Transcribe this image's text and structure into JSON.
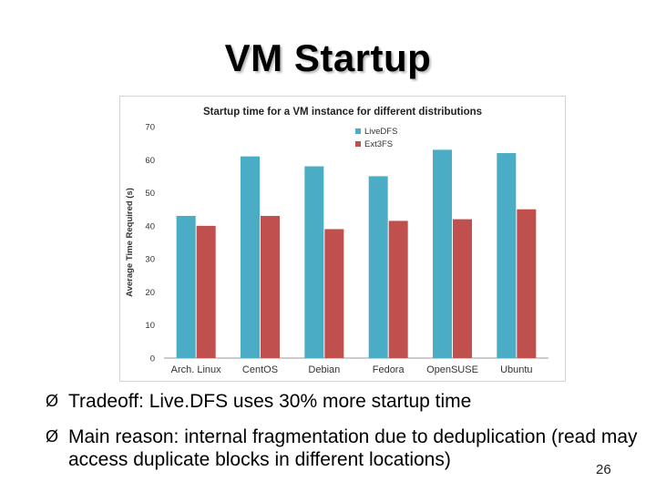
{
  "slide": {
    "title": "VM Startup",
    "page_number": "26",
    "bullet_marker": "Ø",
    "bullets": [
      "Tradeoff: Live.DFS uses 30% more startup time",
      "Main reason: internal fragmentation due to deduplication (read may access duplicate blocks in different locations)"
    ]
  },
  "chart_data": {
    "type": "bar",
    "title": "Startup time for a VM instance for different distributions",
    "xlabel": "",
    "ylabel": "Average Time Required (s)",
    "ylim": [
      0,
      70
    ],
    "yticks": [
      0,
      10,
      20,
      30,
      40,
      50,
      60,
      70
    ],
    "grid": false,
    "legend_position": "top-right",
    "categories": [
      "Arch. Linux",
      "CentOS",
      "Debian",
      "Fedora",
      "OpenSUSE",
      "Ubuntu"
    ],
    "series": [
      {
        "name": "LiveDFS",
        "color": "#4bacc6",
        "values": [
          43,
          61,
          58,
          55,
          63,
          62
        ]
      },
      {
        "name": "Ext3FS",
        "color": "#c0504d",
        "values": [
          40,
          43,
          39,
          41.5,
          42,
          45
        ]
      }
    ]
  }
}
